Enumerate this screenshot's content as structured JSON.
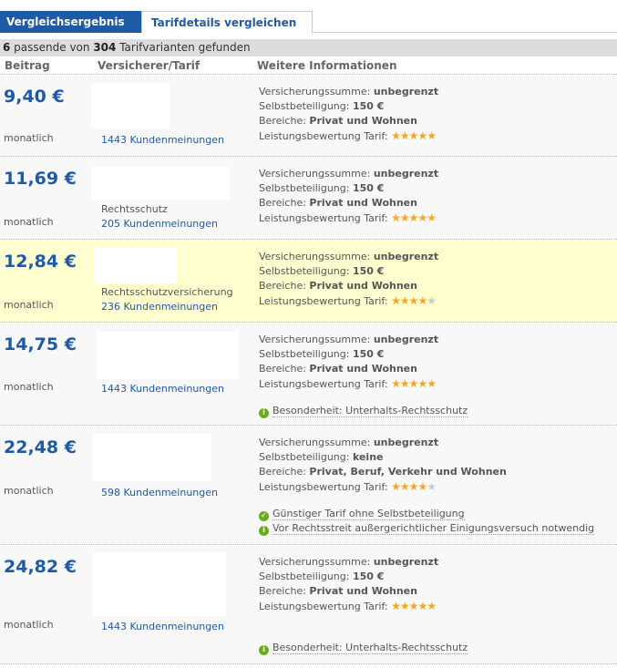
{
  "tabs": [
    {
      "label": "Vergleichsergebnis",
      "active": true
    },
    {
      "label": "Tarifdetails vergleichen",
      "active": false
    }
  ],
  "summary": {
    "count": "6",
    "middle": " passende von ",
    "total": "304",
    "suffix": " Tarifvarianten gefunden"
  },
  "columns": [
    "Beitrag",
    "Versicherer/Tarif",
    "Weitere Informationen"
  ],
  "labels": {
    "sum": "Versicherungssumme: ",
    "deductible": "Selbstbeteiligung: ",
    "areas": "Bereiche: ",
    "rating": "Leistungsbewertung Tarif: ",
    "monthly": "monatlich"
  },
  "colors": {
    "accent": "#1f5aa6",
    "highlight": "#ffffd0",
    "star": "#f5a623"
  },
  "rows": [
    {
      "price": "9,40 €",
      "tarif": "",
      "reviews": "1443 Kundenmeinungen",
      "sum": "unbegrenzt",
      "deductible": "150 €",
      "areas": "Privat und Wohnen",
      "rating": 5,
      "notes": []
    },
    {
      "price": "11,69 €",
      "tarif": "Rechtsschutz",
      "reviews": "205 Kundenmeinungen",
      "sum": "unbegrenzt",
      "deductible": "150 €",
      "areas": "Privat und Wohnen",
      "rating": 5,
      "notes": []
    },
    {
      "price": "12,84 €",
      "tarif": "Rechtsschutzversicherung",
      "reviews": "236 Kundenmeinungen",
      "sum": "unbegrenzt",
      "deductible": "150 €",
      "areas": "Privat und Wohnen",
      "rating": 4.5,
      "highlight": true,
      "notes": []
    },
    {
      "price": "14,75 €",
      "tarif": "",
      "reviews": "1443 Kundenmeinungen",
      "sum": "unbegrenzt",
      "deductible": "150 €",
      "areas": "Privat und Wohnen",
      "rating": 5,
      "notes": [
        {
          "icon": "info-icon",
          "text": "Besonderheit: Unterhalts-Rechtsschutz"
        }
      ]
    },
    {
      "price": "22,48 €",
      "tarif": "",
      "reviews": "598 Kundenmeinungen",
      "sum": "unbegrenzt",
      "deductible": "keine",
      "areas": "Privat, Beruf, Verkehr und Wohnen",
      "rating": 4,
      "notes": [
        {
          "icon": "check-icon",
          "text": "Günstiger Tarif ohne Selbstbeteiligung"
        },
        {
          "icon": "info-icon",
          "text": "Vor Rechtsstreit außergerichtlicher Einigungsversuch notwendig"
        }
      ]
    },
    {
      "price": "24,82 €",
      "tarif": "",
      "reviews": "1443 Kundenmeinungen",
      "sum": "unbegrenzt",
      "deductible": "150 €",
      "areas": "Privat und Wohnen",
      "rating": 5,
      "notes": [
        {
          "icon": "info-icon",
          "text": "Besonderheit: Unterhalts-Rechtsschutz"
        }
      ]
    }
  ]
}
